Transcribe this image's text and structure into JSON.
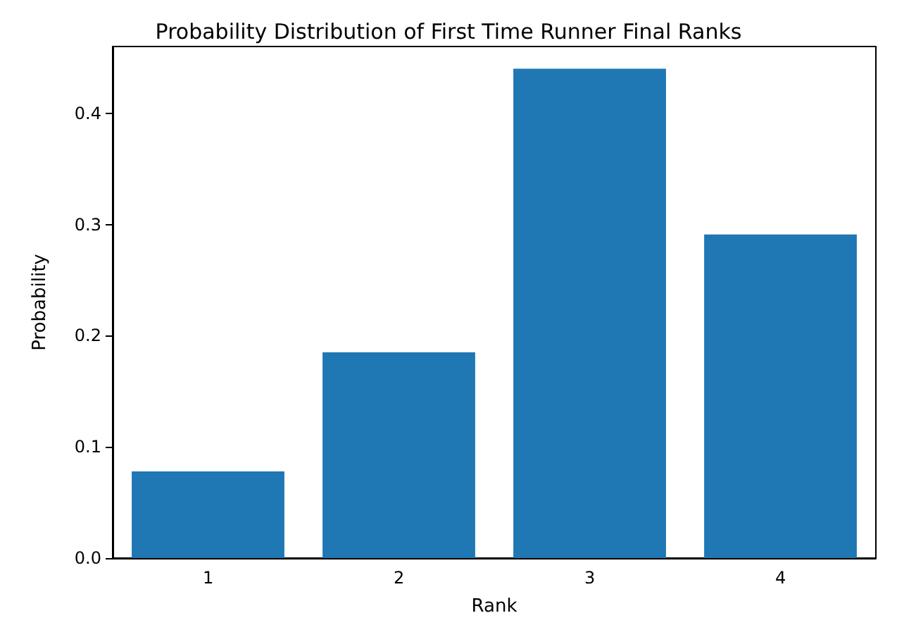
{
  "chart_data": {
    "type": "bar",
    "title": "Probability Distribution of First Time Runner Final Ranks",
    "xlabel": "Rank",
    "ylabel": "Probability",
    "categories": [
      "1",
      "2",
      "3",
      "4"
    ],
    "values": [
      0.078,
      0.185,
      0.44,
      0.291
    ],
    "color": "#1f77b4",
    "ylim": [
      0,
      0.46
    ],
    "yticks": [
      {
        "value": 0,
        "label": "0.0"
      },
      0.1,
      0.2,
      0.3,
      0.4
    ],
    "grid": false
  }
}
